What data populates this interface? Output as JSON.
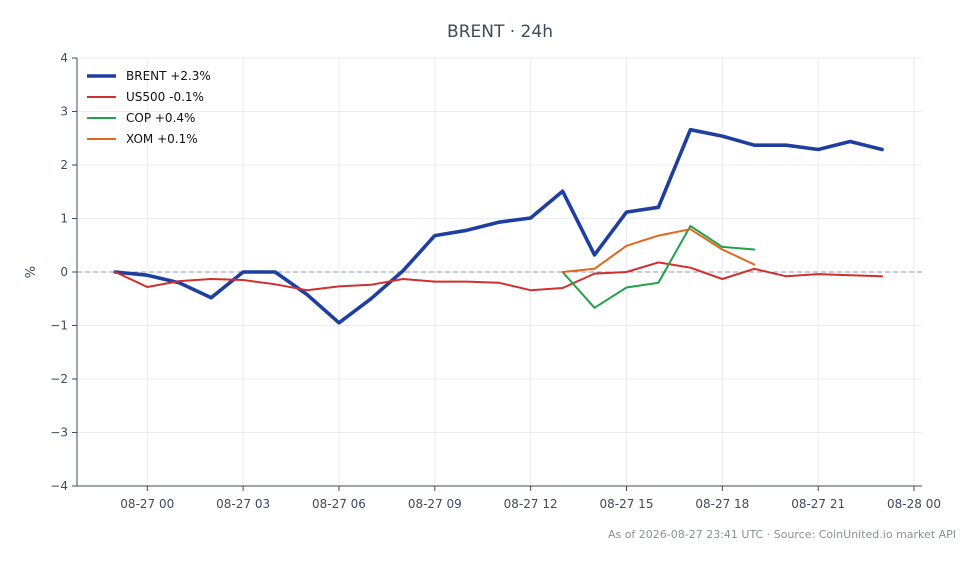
{
  "chart_data": {
    "type": "line",
    "title": "BRENT · 24h",
    "ylabel": "%",
    "xlabel": "",
    "ylim": [
      -4,
      4
    ],
    "yticks": [
      4,
      3,
      2,
      1,
      0,
      -1,
      -2,
      -3,
      -4
    ],
    "ytick_labels": [
      "4",
      "3",
      "2",
      "1",
      "0",
      "−1",
      "−2",
      "−3",
      "−4"
    ],
    "xlim": [
      "08-26 21:48",
      "08-28 00:15"
    ],
    "xticks": [
      "08-27 00:00",
      "08-27 03:00",
      "08-27 06:00",
      "08-27 09:00",
      "08-27 12:00",
      "08-27 15:00",
      "08-27 18:00",
      "08-27 21:00",
      "08-28 00:00"
    ],
    "xtick_labels": [
      "08-27 00",
      "08-27 03",
      "08-27 06",
      "08-27 09",
      "08-27 12",
      "08-27 15",
      "08-27 18",
      "08-27 21",
      "08-28 00"
    ],
    "grid": true,
    "zero_line": true,
    "legend_position": "top-left",
    "series": [
      {
        "name": "BRENT +2.3%",
        "color": "#1f3fa0",
        "bold": true,
        "x": [
          "08-26 23:00",
          "08-27 00:00",
          "08-27 01:00",
          "08-27 02:00",
          "08-27 03:00",
          "08-27 04:00",
          "08-27 05:00",
          "08-27 06:00",
          "08-27 07:00",
          "08-27 08:00",
          "08-27 09:00",
          "08-27 10:00",
          "08-27 11:00",
          "08-27 12:00",
          "08-27 13:00",
          "08-27 14:00",
          "08-27 15:00",
          "08-27 16:00",
          "08-27 17:00",
          "08-27 18:00",
          "08-27 19:00",
          "08-27 20:00",
          "08-27 21:00",
          "08-27 22:00",
          "08-27 23:00"
        ],
        "values": [
          0.0,
          -0.06,
          -0.2,
          -0.48,
          0.0,
          0.0,
          -0.42,
          -0.95,
          -0.5,
          0.02,
          0.68,
          0.78,
          0.93,
          1.01,
          1.51,
          0.32,
          1.12,
          1.21,
          2.66,
          2.54,
          2.37,
          2.37,
          2.29,
          2.44,
          2.29
        ]
      },
      {
        "name": "US500 -0.1%",
        "color": "#d12e2e",
        "bold": false,
        "x": [
          "08-26 23:00",
          "08-27 00:00",
          "08-27 01:00",
          "08-27 02:00",
          "08-27 03:00",
          "08-27 04:00",
          "08-27 05:00",
          "08-27 06:00",
          "08-27 07:00",
          "08-27 08:00",
          "08-27 09:00",
          "08-27 10:00",
          "08-27 11:00",
          "08-27 12:00",
          "08-27 13:00",
          "08-27 14:00",
          "08-27 15:00",
          "08-27 16:00",
          "08-27 17:00",
          "08-27 18:00",
          "08-27 19:00",
          "08-27 20:00",
          "08-27 21:00",
          "08-27 22:00",
          "08-27 23:00"
        ],
        "values": [
          0.0,
          -0.28,
          -0.17,
          -0.13,
          -0.15,
          -0.23,
          -0.34,
          -0.27,
          -0.24,
          -0.13,
          -0.18,
          -0.18,
          -0.2,
          -0.34,
          -0.3,
          -0.03,
          0.0,
          0.18,
          0.08,
          -0.13,
          0.06,
          -0.08,
          -0.04,
          -0.06,
          -0.08
        ]
      },
      {
        "name": "COP +0.4%",
        "color": "#22a04a",
        "bold": false,
        "x": [
          "08-27 13:00",
          "08-27 14:00",
          "08-27 15:00",
          "08-27 16:00",
          "08-27 17:00",
          "08-27 18:00",
          "08-27 19:00"
        ],
        "values": [
          0.0,
          -0.67,
          -0.29,
          -0.2,
          0.86,
          0.47,
          0.42
        ]
      },
      {
        "name": "XOM +0.1%",
        "color": "#e0681e",
        "bold": false,
        "x": [
          "08-27 13:00",
          "08-27 14:00",
          "08-27 15:00",
          "08-27 16:00",
          "08-27 17:00",
          "08-27 18:00",
          "08-27 19:00"
        ],
        "values": [
          0.0,
          0.06,
          0.49,
          0.68,
          0.8,
          0.42,
          0.14
        ]
      }
    ]
  },
  "footer": {
    "text": "As of 2026-08-27 23:41 UTC · Source: CoinUnited.io market API"
  }
}
